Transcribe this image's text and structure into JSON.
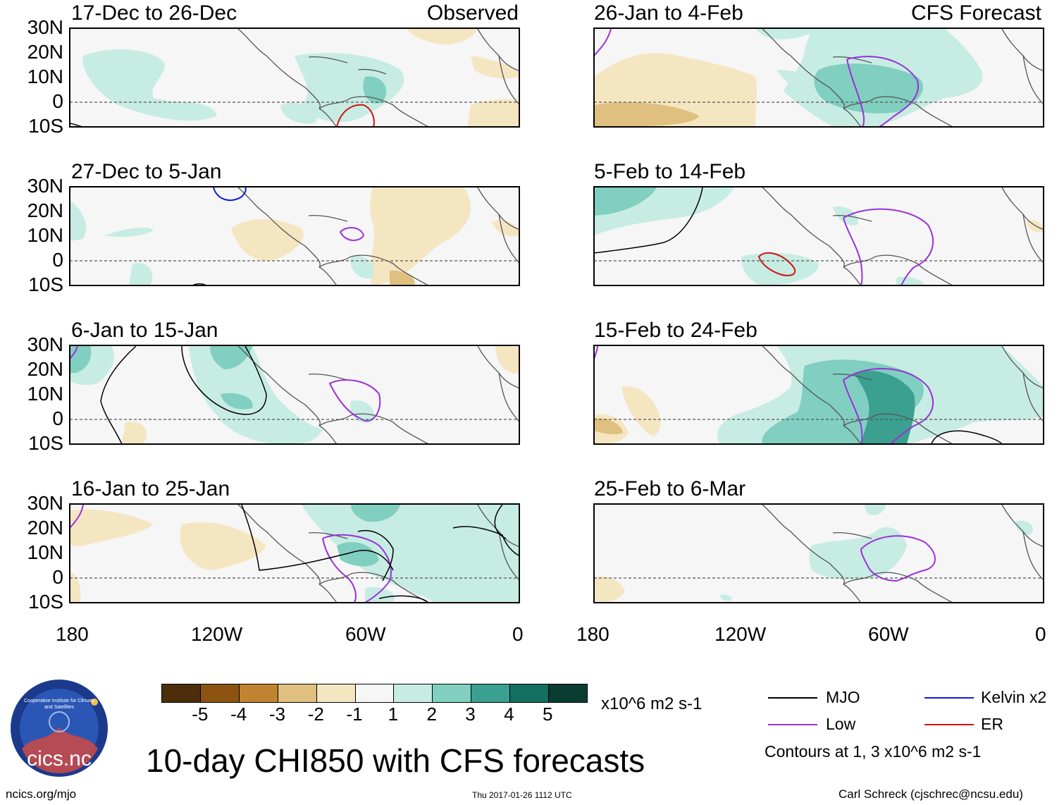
{
  "panels_left": [
    {
      "title": "17-Dec to 26-Dec",
      "label": "Observed"
    },
    {
      "title": "27-Dec to 5-Jan",
      "label": ""
    },
    {
      "title": "6-Jan to 15-Jan",
      "label": ""
    },
    {
      "title": "16-Jan to 25-Jan",
      "label": ""
    }
  ],
  "panels_right": [
    {
      "title": "26-Jan to 4-Feb",
      "label": "CFS Forecast"
    },
    {
      "title": "5-Feb to 14-Feb",
      "label": ""
    },
    {
      "title": "15-Feb to 24-Feb",
      "label": ""
    },
    {
      "title": "25-Feb to 6-Mar",
      "label": ""
    }
  ],
  "lat_labels": [
    "30N",
    "20N",
    "10N",
    "0",
    "10S"
  ],
  "lon_labels": [
    "180",
    "120W",
    "60W",
    "0"
  ],
  "colorbar": {
    "ticks": [
      "-5",
      "-4",
      "-3",
      "-2",
      "-1",
      "1",
      "2",
      "3",
      "4",
      "5"
    ],
    "colors": [
      "#4d2e0a",
      "#8c5410",
      "#c08430",
      "#e0c080",
      "#f5e6c2",
      "#f6f6f6",
      "#c7ece3",
      "#80cfc0",
      "#3ba090",
      "#137060",
      "#0a3d32"
    ],
    "units": "x10^6 m2 s-1"
  },
  "legend": {
    "mjo": "MJO",
    "low": "Low",
    "kelvin": "Kelvin x2",
    "er": "ER",
    "contours_note": "Contours at 1, 3 x10^6 m2 s-1",
    "colors": {
      "mjo": "#000000",
      "low": "#9b30d9",
      "kelvin": "#0a1fd8",
      "er": "#d41010"
    }
  },
  "main_title": "10-day CHI850 with CFS forecasts",
  "logo_text": "cics.nc",
  "logo_ring_text": "Cooperative Institute for Climate and Satellites",
  "footer": {
    "left": "ncics.org/mjo",
    "center": "Thu 2017-01-26 1112 UTC",
    "right": "Carl Schreck (cjschrec@ncsu.edu)"
  }
}
